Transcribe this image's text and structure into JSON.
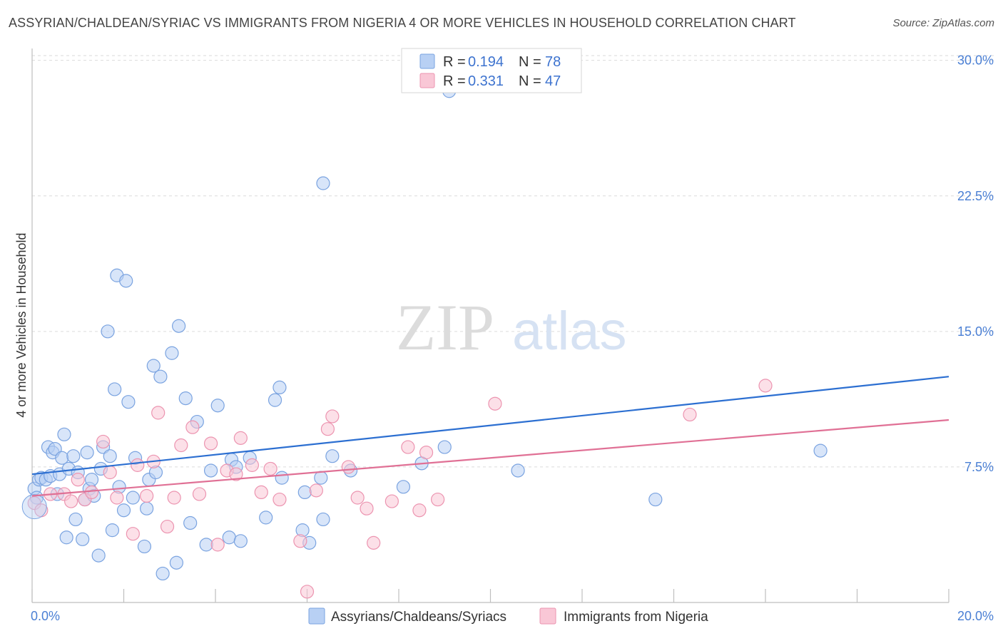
{
  "title": "ASSYRIAN/CHALDEAN/SYRIAC VS IMMIGRANTS FROM NIGERIA 4 OR MORE VEHICLES IN HOUSEHOLD CORRELATION CHART",
  "source": "Source: ZipAtlas.com",
  "watermark": {
    "zip": "ZIP",
    "atlas": "atlas"
  },
  "legend": {
    "r_label": "R =",
    "n_label": "N =",
    "rows": [
      {
        "r": "0.194",
        "n": "78",
        "fill": "#b8d0f4",
        "stroke": "#7aa3e0"
      },
      {
        "r": "0.331",
        "n": "47",
        "fill": "#f9c7d6",
        "stroke": "#ec94b0"
      }
    ]
  },
  "chart_data": {
    "type": "scatter",
    "title": "ASSYRIAN/CHALDEAN/SYRIAC VS IMMIGRANTS FROM NIGERIA 4 OR MORE VEHICLES IN HOUSEHOLD CORRELATION CHART",
    "xlabel": "",
    "ylabel": "4 or more Vehicles in Household",
    "xlim": [
      0,
      20
    ],
    "ylim": [
      0,
      30.5
    ],
    "x_ticks": [
      "0.0%",
      "20.0%"
    ],
    "y_ticks": [
      {
        "value": 7.5,
        "label": "7.5%"
      },
      {
        "value": 15.0,
        "label": "15.0%"
      },
      {
        "value": 22.5,
        "label": "22.5%"
      },
      {
        "value": 30.0,
        "label": "30.0%"
      }
    ],
    "grid": true,
    "legend_position": "top-center",
    "series": [
      {
        "name": "Assyrians/Chaldeans/Syriacs",
        "color": "#7aa3e0",
        "fill": "#b8d0f4",
        "line_color": "#2c6fd1",
        "trend": [
          [
            0,
            7.1
          ],
          [
            20,
            12.5
          ]
        ],
        "points": [
          [
            0.05,
            6.3
          ],
          [
            0.1,
            5.8
          ],
          [
            0.15,
            6.8
          ],
          [
            0.2,
            6.9
          ],
          [
            0.3,
            6.8
          ],
          [
            0.35,
            8.6
          ],
          [
            0.4,
            7.0
          ],
          [
            0.45,
            8.3
          ],
          [
            0.5,
            8.5
          ],
          [
            0.55,
            6.0
          ],
          [
            0.6,
            7.1
          ],
          [
            0.65,
            8.0
          ],
          [
            0.7,
            9.3
          ],
          [
            0.75,
            3.6
          ],
          [
            0.8,
            7.4
          ],
          [
            0.9,
            8.1
          ],
          [
            0.95,
            4.6
          ],
          [
            1.0,
            7.2
          ],
          [
            1.1,
            3.5
          ],
          [
            1.15,
            5.7
          ],
          [
            1.2,
            8.3
          ],
          [
            1.25,
            6.3
          ],
          [
            1.3,
            6.8
          ],
          [
            1.45,
            2.6
          ],
          [
            1.5,
            7.4
          ],
          [
            1.55,
            8.6
          ],
          [
            1.65,
            15.0
          ],
          [
            1.7,
            8.1
          ],
          [
            1.75,
            4.0
          ],
          [
            1.8,
            11.8
          ],
          [
            1.85,
            18.1
          ],
          [
            1.9,
            6.4
          ],
          [
            2.0,
            5.1
          ],
          [
            2.05,
            17.8
          ],
          [
            2.1,
            11.1
          ],
          [
            2.2,
            5.8
          ],
          [
            2.25,
            8.0
          ],
          [
            2.45,
            3.1
          ],
          [
            2.5,
            5.2
          ],
          [
            2.55,
            6.8
          ],
          [
            2.65,
            13.1
          ],
          [
            2.7,
            7.2
          ],
          [
            2.8,
            12.5
          ],
          [
            2.85,
            1.6
          ],
          [
            3.05,
            13.8
          ],
          [
            3.15,
            2.2
          ],
          [
            3.2,
            15.3
          ],
          [
            3.35,
            11.3
          ],
          [
            3.45,
            4.4
          ],
          [
            3.6,
            10.0
          ],
          [
            3.8,
            3.2
          ],
          [
            3.9,
            7.3
          ],
          [
            4.05,
            10.9
          ],
          [
            4.3,
            3.6
          ],
          [
            4.35,
            7.9
          ],
          [
            4.45,
            7.5
          ],
          [
            4.55,
            3.4
          ],
          [
            4.75,
            8.0
          ],
          [
            5.1,
            4.7
          ],
          [
            5.3,
            11.2
          ],
          [
            5.4,
            11.9
          ],
          [
            5.45,
            6.9
          ],
          [
            5.9,
            4.0
          ],
          [
            5.95,
            6.1
          ],
          [
            6.05,
            3.3
          ],
          [
            6.3,
            6.9
          ],
          [
            6.35,
            4.6
          ],
          [
            6.35,
            23.2
          ],
          [
            6.55,
            8.1
          ],
          [
            6.95,
            7.3
          ],
          [
            8.1,
            6.4
          ],
          [
            8.5,
            7.7
          ],
          [
            9.0,
            8.6
          ],
          [
            9.1,
            28.3
          ],
          [
            10.6,
            7.3
          ],
          [
            13.6,
            5.7
          ],
          [
            17.2,
            8.4
          ],
          [
            1.35,
            5.9
          ]
        ]
      },
      {
        "name": "Immigrants from Nigeria",
        "color": "#ec94b0",
        "fill": "#f9c7d6",
        "line_color": "#e07095",
        "trend": [
          [
            0,
            5.9
          ],
          [
            20,
            10.1
          ]
        ],
        "points": [
          [
            0.05,
            5.5
          ],
          [
            0.2,
            5.1
          ],
          [
            0.4,
            6.0
          ],
          [
            0.7,
            6.0
          ],
          [
            0.85,
            5.6
          ],
          [
            1.0,
            6.8
          ],
          [
            1.15,
            5.7
          ],
          [
            1.3,
            6.1
          ],
          [
            1.55,
            8.9
          ],
          [
            1.7,
            7.2
          ],
          [
            1.85,
            5.8
          ],
          [
            2.2,
            3.8
          ],
          [
            2.3,
            7.6
          ],
          [
            2.5,
            5.9
          ],
          [
            2.65,
            7.8
          ],
          [
            2.75,
            10.5
          ],
          [
            2.95,
            4.2
          ],
          [
            3.1,
            5.8
          ],
          [
            3.25,
            8.7
          ],
          [
            3.5,
            9.7
          ],
          [
            3.65,
            6.0
          ],
          [
            3.9,
            8.8
          ],
          [
            4.05,
            3.2
          ],
          [
            4.25,
            7.3
          ],
          [
            4.45,
            7.1
          ],
          [
            4.55,
            9.1
          ],
          [
            4.8,
            7.6
          ],
          [
            5.0,
            6.1
          ],
          [
            5.2,
            7.4
          ],
          [
            5.4,
            5.7
          ],
          [
            5.85,
            3.4
          ],
          [
            6.0,
            0.6
          ],
          [
            6.2,
            6.2
          ],
          [
            6.45,
            9.6
          ],
          [
            6.55,
            10.3
          ],
          [
            6.9,
            7.5
          ],
          [
            7.1,
            5.8
          ],
          [
            7.3,
            5.2
          ],
          [
            7.45,
            3.3
          ],
          [
            7.85,
            5.6
          ],
          [
            8.2,
            8.6
          ],
          [
            8.45,
            5.1
          ],
          [
            8.6,
            8.3
          ],
          [
            8.85,
            5.7
          ],
          [
            10.1,
            11.0
          ],
          [
            14.35,
            10.4
          ],
          [
            16.0,
            12.0
          ]
        ]
      }
    ]
  }
}
